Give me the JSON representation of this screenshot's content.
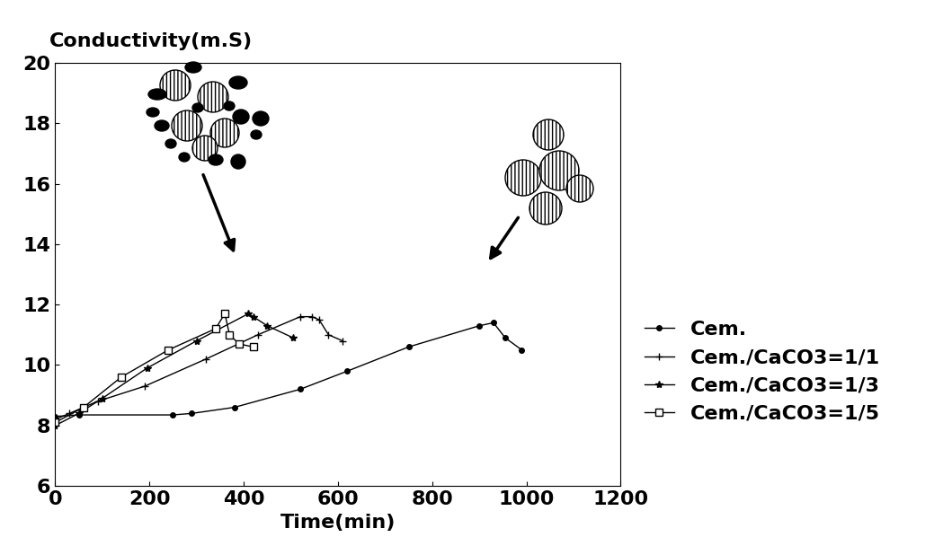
{
  "chart_data": {
    "type": "line",
    "y_label": "Conductivity(m.S)",
    "x_label": "Time(min)",
    "xlim": [
      0,
      1200
    ],
    "xticks": [
      0,
      200,
      400,
      600,
      800,
      1000,
      1200
    ],
    "ylim": [
      6,
      20
    ],
    "yticks": [
      6,
      8,
      10,
      12,
      14,
      16,
      18,
      20
    ],
    "grid": false,
    "legend": "center left",
    "series": [
      {
        "name": "Cem.",
        "color": "#000000",
        "marker": "circle",
        "line_style": "solid",
        "x": [
          0,
          50,
          250,
          290,
          380,
          520,
          620,
          750,
          900,
          930,
          955,
          990
        ],
        "values": [
          8.3,
          8.35,
          8.35,
          8.4,
          8.6,
          9.2,
          9.8,
          10.6,
          11.3,
          11.4,
          10.9,
          10.5
        ]
      },
      {
        "name": "Cem./CaCO3=1/1",
        "color": "#000000",
        "marker": "plus",
        "line_style": "solid",
        "x": [
          0,
          30,
          90,
          190,
          320,
          430,
          520,
          545,
          560,
          580,
          610
        ],
        "values": [
          8.2,
          8.4,
          8.8,
          9.3,
          10.2,
          11.0,
          11.6,
          11.6,
          11.5,
          11.0,
          10.8
        ]
      },
      {
        "name": "Cem./CaCO3=1/3",
        "color": "#000000",
        "marker": "star",
        "line_style": "solid",
        "x": [
          0,
          50,
          100,
          195,
          300,
          410,
          420,
          450,
          505
        ],
        "values": [
          8.0,
          8.4,
          8.9,
          9.9,
          10.8,
          11.7,
          11.6,
          11.3,
          10.9
        ]
      },
      {
        "name": "Cem./CaCO3=1/5",
        "color": "#000000",
        "marker": "square",
        "line_style": "solid",
        "x": [
          0,
          60,
          140,
          240,
          340,
          360,
          370,
          390,
          420
        ],
        "values": [
          8.1,
          8.6,
          9.6,
          10.5,
          11.2,
          11.7,
          11.0,
          10.7,
          10.6
        ]
      }
    ]
  }
}
